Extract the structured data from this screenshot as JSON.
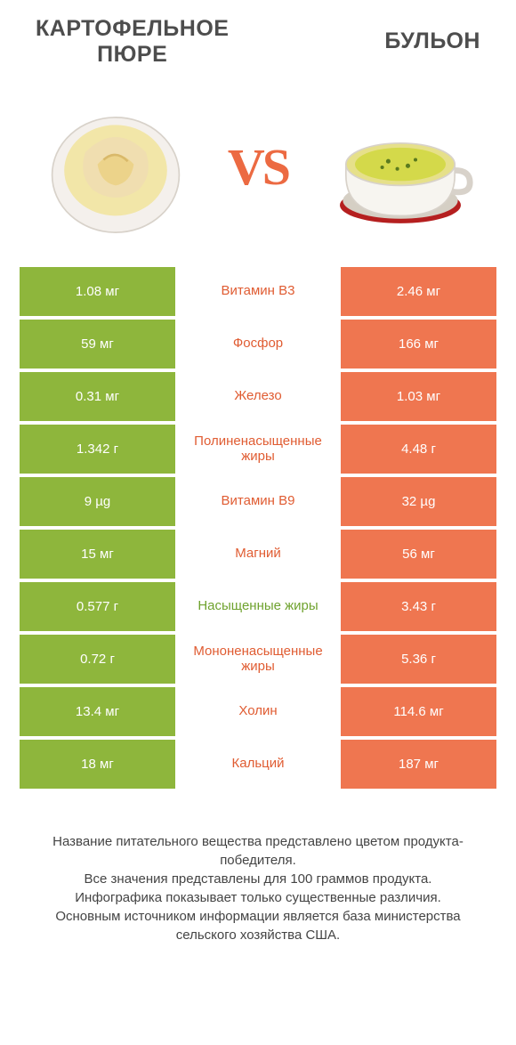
{
  "colors": {
    "left_bar": "#8eb63c",
    "right_bar": "#ef7650",
    "vs_text": "#ec6a42",
    "title_text": "#4d4d4d",
    "mid_green": "#6fa22e",
    "mid_orange": "#e05c32"
  },
  "left_title": "КАРТОФЕЛЬНОЕ\nПЮРЕ",
  "right_title": "БУЛЬОН",
  "vs": "VS",
  "rows": [
    {
      "left": "1.08 мг",
      "mid": "Витамин B3",
      "right": "2.46 мг",
      "winner": "right"
    },
    {
      "left": "59 мг",
      "mid": "Фосфор",
      "right": "166 мг",
      "winner": "right"
    },
    {
      "left": "0.31 мг",
      "mid": "Железо",
      "right": "1.03 мг",
      "winner": "right"
    },
    {
      "left": "1.342 г",
      "mid": "Полиненасыщенные жиры",
      "right": "4.48 г",
      "winner": "right"
    },
    {
      "left": "9 µg",
      "mid": "Витамин B9",
      "right": "32 µg",
      "winner": "right"
    },
    {
      "left": "15 мг",
      "mid": "Магний",
      "right": "56 мг",
      "winner": "right"
    },
    {
      "left": "0.577 г",
      "mid": "Насыщенные жиры",
      "right": "3.43 г",
      "winner": "left"
    },
    {
      "left": "0.72 г",
      "mid": "Мононенасыщенные жиры",
      "right": "5.36 г",
      "winner": "right"
    },
    {
      "left": "13.4 мг",
      "mid": "Холин",
      "right": "114.6 мг",
      "winner": "right"
    },
    {
      "left": "18 мг",
      "mid": "Кальций",
      "right": "187 мг",
      "winner": "right"
    }
  ],
  "footer": "Название питательного вещества представлено цветом продукта-победителя.\nВсе значения представлены для 100 граммов продукта.\nИнфографика показывает только существенные различия.\nОсновным источником информации является база министерства сельского хозяйства США."
}
